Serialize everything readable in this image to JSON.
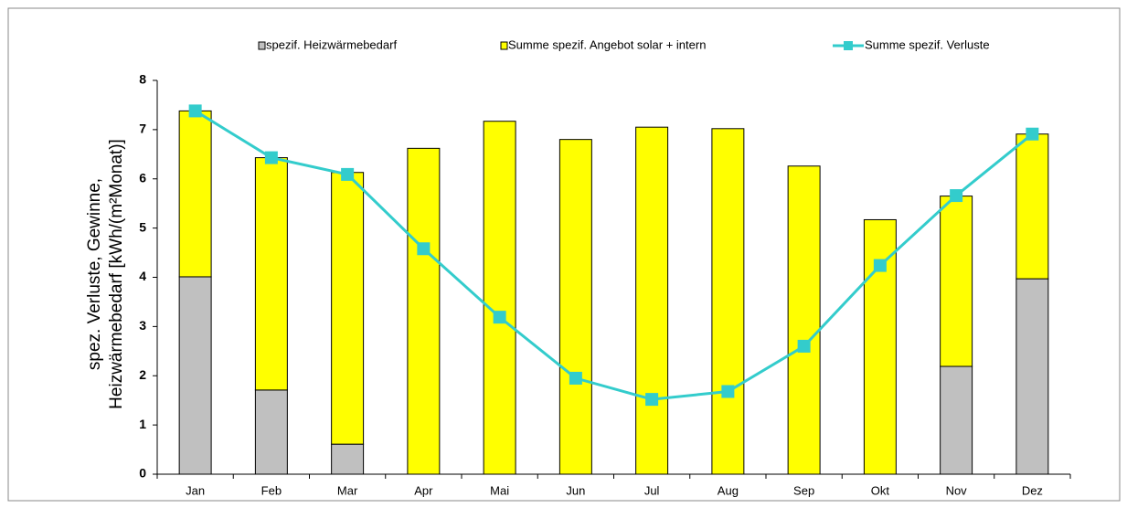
{
  "chart_data": {
    "type": "bar",
    "stacked": true,
    "y_label": [
      "spez. Verluste, Gewinne,",
      "Heizwärmebedarf [kWh/(m²Monat)]"
    ],
    "categories": [
      "Jan",
      "Feb",
      "Mar",
      "Apr",
      "Mai",
      "Jun",
      "Jul",
      "Aug",
      "Sep",
      "Okt",
      "Nov",
      "Dez"
    ],
    "series": [
      {
        "name": "spezif. Heizwärmebedarf",
        "type": "bar",
        "color": "#c0c0c0",
        "values": [
          4.01,
          1.71,
          0.61,
          0,
          0,
          0,
          0,
          0,
          0,
          0,
          2.19,
          3.97
        ]
      },
      {
        "name": "Summe spezif. Angebot solar + intern",
        "type": "bar",
        "color": "#ffff00",
        "values": [
          3.37,
          4.72,
          5.52,
          6.62,
          7.17,
          6.8,
          7.05,
          7.02,
          6.26,
          5.17,
          3.46,
          2.94
        ]
      },
      {
        "name": "Summe spezif. Verluste",
        "type": "line",
        "color": "#33cccc",
        "values": [
          7.38,
          6.43,
          6.09,
          4.58,
          3.19,
          1.95,
          1.52,
          1.68,
          2.6,
          4.24,
          5.66,
          6.91
        ]
      }
    ],
    "ylim": [
      0,
      8
    ],
    "yticks": [
      0,
      1,
      2,
      3,
      4,
      5,
      6,
      7,
      8
    ],
    "grid": false,
    "legend": "top"
  }
}
